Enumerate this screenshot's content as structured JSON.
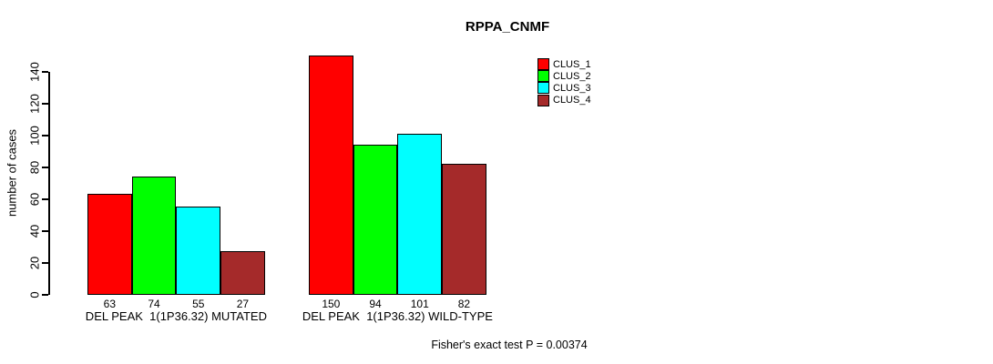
{
  "chart": {
    "title": "RPPA_CNMF",
    "ylabel": "number of cases",
    "annotation": "Fisher's exact test P = 0.00374"
  },
  "chart_data": {
    "type": "bar",
    "title": "RPPA_CNMF",
    "xlabel": "",
    "ylabel": "number of cases",
    "categories": [
      "DEL PEAK  1(1P36.32) MUTATED",
      "DEL PEAK  1(1P36.32) WILD-TYPE"
    ],
    "series": [
      {
        "name": "CLUS_1",
        "color": "#FF0000",
        "values": [
          63,
          150
        ]
      },
      {
        "name": "CLUS_2",
        "color": "#00FF00",
        "values": [
          74,
          94
        ]
      },
      {
        "name": "CLUS_3",
        "color": "#00FFFF",
        "values": [
          55,
          101
        ]
      },
      {
        "name": "CLUS_4",
        "color": "#A52A2A",
        "values": [
          27,
          82
        ]
      }
    ],
    "yticks": [
      0,
      20,
      40,
      60,
      80,
      100,
      120,
      140
    ],
    "ylim": [
      0,
      150
    ],
    "grid": false,
    "legend_position": "top-right",
    "legend_entries": [
      "CLUS_1",
      "CLUS_2",
      "CLUS_3",
      "CLUS_4"
    ],
    "bar_value_labels_shown": true,
    "annotation": "Fisher's exact test P = 0.00374"
  }
}
